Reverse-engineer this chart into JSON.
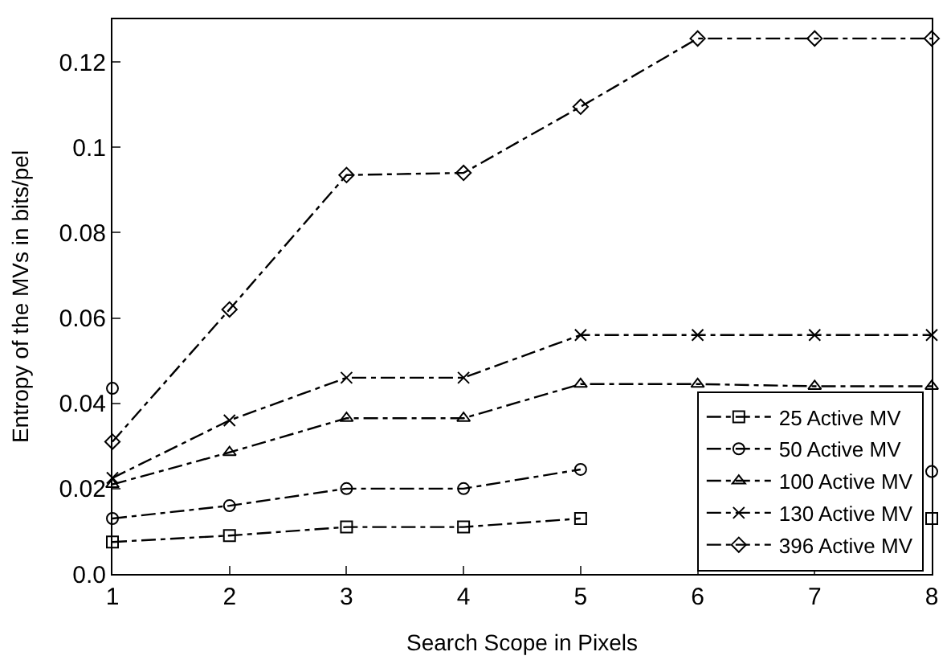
{
  "chart_data": {
    "type": "line",
    "xlabel": "Search Scope in Pixels",
    "ylabel": "Entropy of the MVs in bits/pel",
    "x": [
      1,
      2,
      3,
      4,
      5,
      6,
      7,
      8
    ],
    "series": [
      {
        "name": "25 Active MV",
        "color": "#000000",
        "marker": "square",
        "values": [
          0.0075,
          0.009,
          0.011,
          0.011,
          0.013,
          null,
          null,
          0.013
        ]
      },
      {
        "name": "50 Active MV",
        "color": "#000000",
        "marker": "circle",
        "values": [
          0.013,
          0.016,
          0.02,
          0.02,
          0.0245,
          null,
          null,
          0.024
        ]
      },
      {
        "name": "100 Active MV",
        "color": "#000000",
        "marker": "triangle",
        "values": [
          0.021,
          0.0285,
          0.0365,
          0.0365,
          0.0445,
          0.0445,
          0.044,
          0.044
        ]
      },
      {
        "name": "130 Active MV",
        "color": "#000000",
        "marker": "cross",
        "values": [
          0.0225,
          0.036,
          0.046,
          0.046,
          0.056,
          0.056,
          0.056,
          0.056
        ]
      },
      {
        "name": "396 Active MV",
        "color": "#000000",
        "marker": "diamond",
        "values": [
          0.031,
          0.062,
          0.0935,
          0.094,
          0.1095,
          0.1255,
          0.1255,
          0.1255
        ]
      },
      {
        "type": "scatter",
        "color": "#000000",
        "marker": "circle",
        "x": [
          1
        ],
        "values": [
          0.0435
        ]
      }
    ],
    "line_style": "dashed",
    "xlim": [
      1,
      8
    ],
    "ylim": [
      0,
      0.13
    ],
    "xticks": [
      1,
      2,
      3,
      4,
      5,
      6,
      7,
      8
    ],
    "yticks": [
      {
        "value": 0,
        "label": "0.0"
      },
      0.02,
      0.04,
      0.06,
      0.08,
      0.1,
      0.12
    ],
    "legend": "bottom right"
  }
}
